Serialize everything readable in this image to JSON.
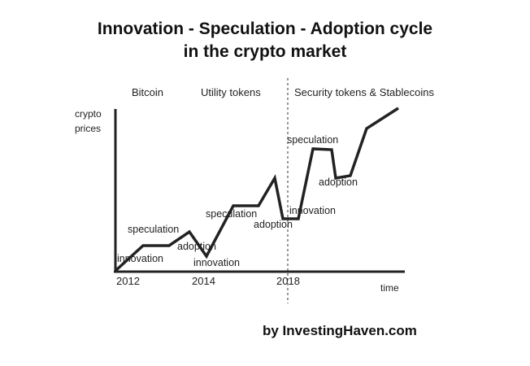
{
  "title_line1": "Innovation - Speculation - Adoption cycle",
  "title_line2": "in the crypto market",
  "eras": [
    "Bitcoin",
    "Utility tokens",
    "Security tokens & Stablecoins"
  ],
  "y_axis_label_line1": "crypto",
  "y_axis_label_line2": "prices",
  "x_axis_label": "time",
  "years": [
    "2012",
    "2014",
    "2018"
  ],
  "phases": {
    "innovation_1": "innovation",
    "speculation_1": "speculation",
    "adoption_1": "adoption",
    "innovation_2": "innovation",
    "speculation_2": "speculation",
    "adoption_2": "adoption",
    "innovation_3": "innovation",
    "speculation_3": "speculation",
    "adoption_3": "adoption"
  },
  "credit": "by InvestingHaven.com"
}
